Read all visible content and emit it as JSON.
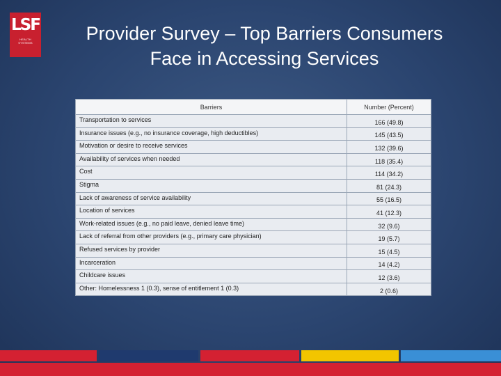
{
  "logo": {
    "mark": "LSF",
    "sub_line1": "HEALTH",
    "sub_line2": "SYSTEMS"
  },
  "title": {
    "line1": "Provider Survey – Top Barriers Consumers",
    "line2": "Face in Accessing Services"
  },
  "table": {
    "headers": [
      "Barriers",
      "Number (Percent)"
    ],
    "rows": [
      {
        "barrier": "Transportation to services",
        "value": "166 (49.8)"
      },
      {
        "barrier": "Insurance issues (e.g., no insurance coverage, high deductibles)",
        "value": "145 (43.5)"
      },
      {
        "barrier": "Motivation or desire to receive services",
        "value": "132 (39.6)"
      },
      {
        "barrier": "Availability of services when needed",
        "value": "118 (35.4)"
      },
      {
        "barrier": "Cost",
        "value": "114 (34.2)"
      },
      {
        "barrier": "Stigma",
        "value": "81 (24.3)"
      },
      {
        "barrier": "Lack of awareness of service availability",
        "value": "55 (16.5)"
      },
      {
        "barrier": "Location of services",
        "value": "41 (12.3)"
      },
      {
        "barrier": "Work-related issues (e.g., no paid leave, denied leave time)",
        "value": "32 (9.6)"
      },
      {
        "barrier": "Lack of referral from other providers (e.g., primary care physician)",
        "value": "19 (5.7)"
      },
      {
        "barrier": "Refused services by provider",
        "value": "15 (4.5)"
      },
      {
        "barrier": "Incarceration",
        "value": "14 (4.2)"
      },
      {
        "barrier": "Childcare issues",
        "value": "12 (3.6)"
      },
      {
        "barrier": "Other: Homelessness 1 (0.3), sense of entitlement 1 (0.3)",
        "value": "2 (0.6)"
      }
    ]
  },
  "colors": {
    "brand_red": "#d42132",
    "stripe_navy": "#1f3a6e",
    "stripe_yellow": "#f2c500",
    "stripe_blue": "#3a8fd6"
  }
}
